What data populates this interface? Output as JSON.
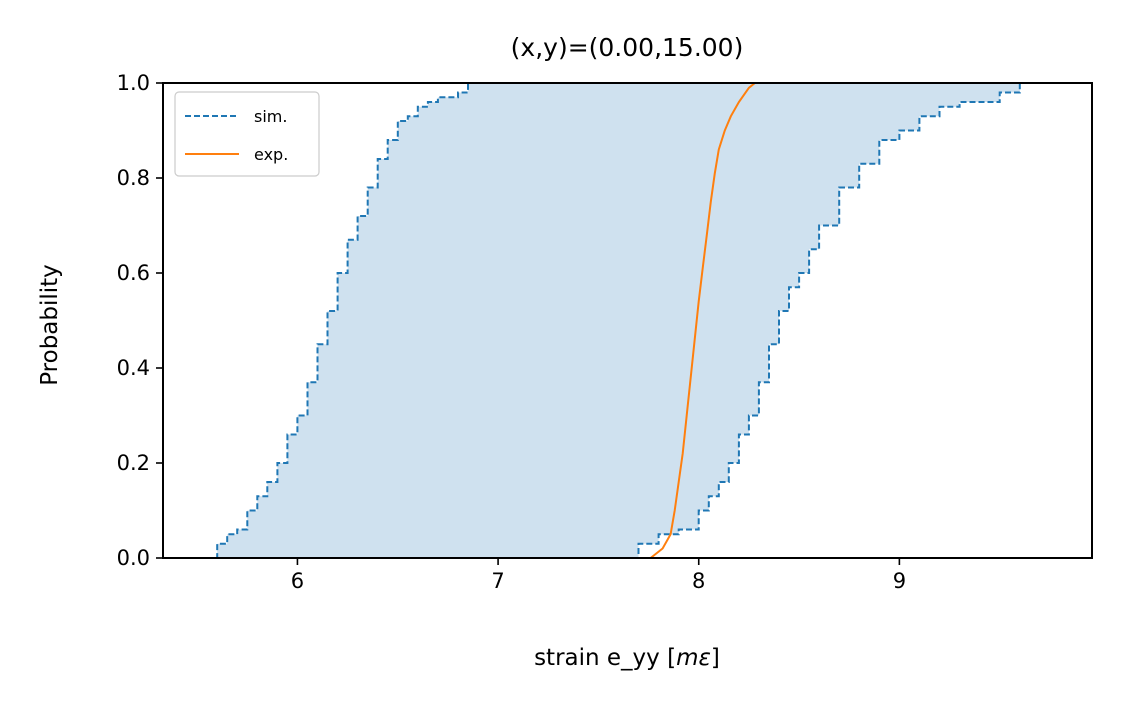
{
  "chart_data": {
    "type": "line",
    "title": "(x,y)=(0.00,15.00)",
    "xlabel": "strain e_yy [",
    "xlabel_unit": "mε",
    "xlabel_close": "]",
    "ylabel": "Probability",
    "xlim": [
      5.33,
      9.96
    ],
    "ylim": [
      0.0,
      1.0
    ],
    "x_ticks": [
      "6",
      "7",
      "8",
      "9"
    ],
    "y_ticks": [
      "0.0",
      "0.2",
      "0.4",
      "0.6",
      "0.8",
      "1.0"
    ],
    "grid": false,
    "legend_position": "top-left",
    "colors": {
      "sim": "#1f77b4",
      "band": "#cfe1ef",
      "exp": "#ff7f0e"
    },
    "band": {
      "lower": {
        "x": [
          5.55,
          5.6,
          5.65,
          5.7,
          5.75,
          5.8,
          5.85,
          5.9,
          5.95,
          6.0,
          6.05,
          6.1,
          6.15,
          6.2,
          6.25,
          6.3,
          6.35,
          6.4,
          6.45,
          6.5,
          6.55,
          6.6,
          6.65,
          6.7,
          6.75,
          6.8,
          6.85,
          6.9,
          7.1
        ],
        "y": [
          0.0,
          0.03,
          0.05,
          0.06,
          0.1,
          0.13,
          0.16,
          0.2,
          0.26,
          0.3,
          0.37,
          0.45,
          0.52,
          0.6,
          0.67,
          0.72,
          0.78,
          0.84,
          0.88,
          0.92,
          0.93,
          0.95,
          0.96,
          0.97,
          0.97,
          0.98,
          1.0,
          1.0,
          1.0
        ]
      },
      "upper": {
        "x": [
          7.63,
          7.7,
          7.8,
          7.9,
          8.0,
          8.05,
          8.1,
          8.15,
          8.2,
          8.25,
          8.3,
          8.35,
          8.4,
          8.45,
          8.5,
          8.55,
          8.6,
          8.7,
          8.8,
          8.9,
          9.0,
          9.1,
          9.2,
          9.3,
          9.5,
          9.6,
          9.75
        ],
        "y": [
          0.0,
          0.03,
          0.05,
          0.06,
          0.1,
          0.13,
          0.16,
          0.2,
          0.26,
          0.3,
          0.37,
          0.45,
          0.52,
          0.57,
          0.6,
          0.65,
          0.7,
          0.78,
          0.83,
          0.88,
          0.9,
          0.93,
          0.95,
          0.96,
          0.98,
          1.0,
          1.0
        ]
      }
    },
    "series": [
      {
        "name": "sim.",
        "style": "dashed"
      },
      {
        "name": "exp.",
        "style": "solid",
        "x": [
          7.76,
          7.82,
          7.86,
          7.88,
          7.9,
          7.92,
          7.94,
          7.96,
          7.98,
          8.0,
          8.02,
          8.04,
          8.06,
          8.08,
          8.1,
          8.13,
          8.16,
          8.2,
          8.25,
          8.28
        ],
        "y": [
          0.0,
          0.02,
          0.05,
          0.1,
          0.16,
          0.22,
          0.3,
          0.38,
          0.46,
          0.54,
          0.61,
          0.68,
          0.75,
          0.81,
          0.86,
          0.9,
          0.93,
          0.96,
          0.99,
          1.0
        ]
      }
    ]
  }
}
